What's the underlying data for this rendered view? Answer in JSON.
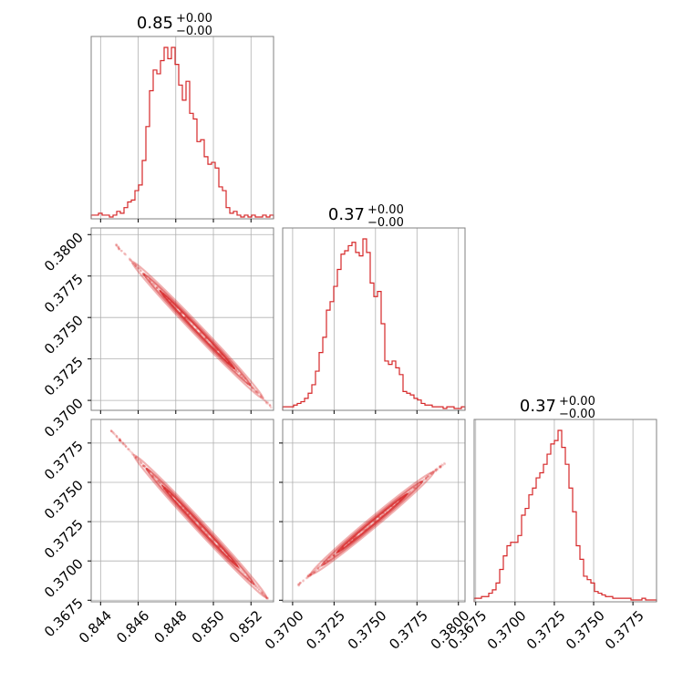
{
  "chart_data": {
    "type": "corner",
    "color": "#d62728",
    "grid": true,
    "titles": [
      {
        "value": "0.85",
        "upper": "+0.00",
        "lower": "−0.00"
      },
      {
        "value": "0.37",
        "upper": "+0.00",
        "lower": "−0.00"
      },
      {
        "value": "0.37",
        "upper": "+0.00",
        "lower": "−0.00"
      }
    ],
    "params": [
      {
        "range": [
          0.8435,
          0.8532
        ],
        "ticks": [
          "0.844",
          "0.846",
          "0.848",
          "0.850",
          "0.852"
        ],
        "tick_values": [
          0.844,
          0.846,
          0.848,
          0.85,
          0.852
        ]
      },
      {
        "range": [
          0.3694,
          0.3804
        ],
        "ticks": [
          "0.3700",
          "0.3725",
          "0.3750",
          "0.3775",
          "0.3800"
        ],
        "tick_values": [
          0.37,
          0.3725,
          0.375,
          0.3775,
          0.38
        ]
      },
      {
        "range": [
          0.3674,
          0.379
        ],
        "ticks": [
          "0.3675",
          "0.3700",
          "0.3725",
          "0.3750",
          "0.3775"
        ],
        "tick_values": [
          0.3675,
          0.37,
          0.3725,
          0.375,
          0.3775
        ]
      }
    ],
    "histograms": [
      {
        "param": 0,
        "edges": [
          0.8435,
          0.8532
        ],
        "counts": [
          1,
          1,
          2,
          1,
          1,
          0,
          1,
          3,
          2,
          5,
          8,
          9,
          14,
          17,
          30,
          48,
          67,
          78,
          76,
          83,
          90,
          84,
          90,
          81,
          70,
          62,
          72,
          55,
          52,
          40,
          41,
          32,
          28,
          29,
          26,
          16,
          14,
          5,
          2,
          3,
          1,
          0,
          1,
          0,
          1,
          0,
          0,
          1,
          0,
          1
        ]
      },
      {
        "param": 1,
        "edges": [
          0.3694,
          0.3804
        ],
        "counts": [
          1,
          1,
          1,
          2,
          3,
          4,
          6,
          9,
          14,
          22,
          33,
          42,
          58,
          63,
          72,
          82,
          91,
          93,
          96,
          98,
          92,
          90,
          100,
          92,
          74,
          66,
          69,
          50,
          28,
          26,
          28,
          24,
          20,
          10,
          9,
          8,
          6,
          5,
          3,
          2,
          2,
          1,
          1,
          1,
          0,
          1,
          1,
          0,
          0,
          1
        ]
      },
      {
        "param": 2,
        "edges": [
          0.3674,
          0.379
        ],
        "counts": [
          1,
          1,
          2,
          2,
          4,
          6,
          10,
          18,
          26,
          32,
          34,
          34,
          38,
          50,
          54,
          62,
          66,
          72,
          75,
          80,
          86,
          92,
          94,
          100,
          90,
          80,
          66,
          52,
          32,
          24,
          14,
          12,
          10,
          5,
          4,
          3,
          2,
          2,
          1,
          1,
          1,
          1,
          1,
          0,
          0,
          0,
          1,
          0,
          0,
          0
        ]
      }
    ],
    "pairs": [
      {
        "x_param": 0,
        "y_param": 1,
        "center": [
          0.84915,
          0.37425
        ],
        "slope": -1.185,
        "spread": 3e-05,
        "x_extent": [
          0.8448,
          0.8531
        ]
      },
      {
        "x_param": 0,
        "y_param": 2,
        "center": [
          0.8493,
          0.3722
        ],
        "slope": -1.285,
        "spread": 3e-05,
        "x_extent": [
          0.8445,
          0.8529
        ]
      },
      {
        "x_param": 1,
        "y_param": 2,
        "center": [
          0.3748,
          0.3724
        ],
        "slope": 0.88,
        "spread": 4e-05,
        "x_extent": [
          0.3703,
          0.3792
        ]
      }
    ]
  }
}
